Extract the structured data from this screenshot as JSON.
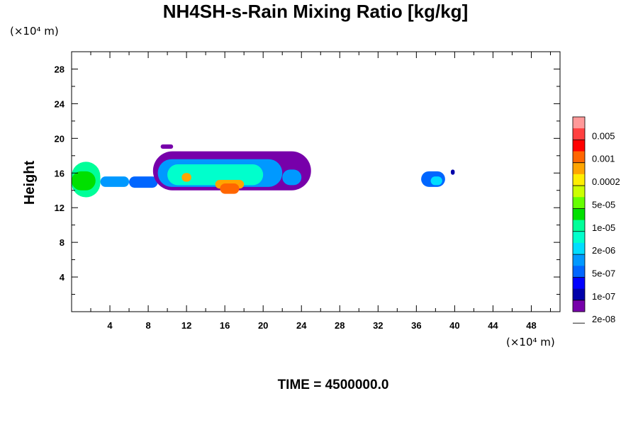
{
  "chart_data": {
    "type": "heatmap",
    "title": "NH4SH-s-Rain Mixing Ratio [kg/kg]",
    "ylabel": "Height",
    "xlabel": "",
    "x_unit": "(×10⁴ m)",
    "y_unit": "(×10⁴ m)",
    "xlim": [
      0,
      51
    ],
    "ylim": [
      0,
      30
    ],
    "x_ticks": [
      4,
      8,
      12,
      16,
      20,
      24,
      28,
      32,
      36,
      40,
      44,
      48
    ],
    "y_ticks": [
      4,
      8,
      12,
      16,
      20,
      24,
      28
    ],
    "colorbar": {
      "labels": [
        "0.005",
        "0.001",
        "0.0002",
        "5e-05",
        "1e-05",
        "2e-06",
        "5e-07",
        "1e-07",
        "2e-08"
      ],
      "colors": [
        "#ff9999",
        "#ff4040",
        "#ff0000",
        "#ff6600",
        "#ffa500",
        "#ffee00",
        "#ccff00",
        "#66ff00",
        "#00e000",
        "#00ff99",
        "#00ffcc",
        "#00ddff",
        "#0099ff",
        "#0066ff",
        "#0000ff",
        "#0000aa",
        "#7700aa"
      ]
    },
    "regions": [
      {
        "x": [
          0,
          3
        ],
        "y": [
          13.2,
          17.3
        ],
        "level": 9
      },
      {
        "x": [
          0,
          2.5
        ],
        "y": [
          14,
          16.2
        ],
        "level": 8
      },
      {
        "x": [
          3,
          6
        ],
        "y": [
          14.4,
          15.6
        ],
        "level": 12
      },
      {
        "x": [
          6,
          9
        ],
        "y": [
          14.3,
          15.6
        ],
        "level": 13
      },
      {
        "x": [
          8.5,
          25
        ],
        "y": [
          14,
          18.5
        ],
        "level": 16
      },
      {
        "x": [
          9,
          22
        ],
        "y": [
          14.4,
          17.6
        ],
        "level": 12
      },
      {
        "x": [
          10,
          20
        ],
        "y": [
          14.6,
          17
        ],
        "level": 10
      },
      {
        "x": [
          11.5,
          12.5
        ],
        "y": [
          15,
          16
        ],
        "level": 4
      },
      {
        "x": [
          15,
          18
        ],
        "y": [
          14.2,
          15.2
        ],
        "level": 4
      },
      {
        "x": [
          15.5,
          17.5
        ],
        "y": [
          13.6,
          14.8
        ],
        "level": 3
      },
      {
        "x": [
          22,
          24
        ],
        "y": [
          14.6,
          16.4
        ],
        "level": 12
      },
      {
        "x": [
          9.3,
          10.6
        ],
        "y": [
          18.8,
          19.3
        ],
        "level": 16
      },
      {
        "x": [
          36.5,
          39
        ],
        "y": [
          14.4,
          16.2
        ],
        "level": 13
      },
      {
        "x": [
          37.5,
          38.7
        ],
        "y": [
          14.6,
          15.6
        ],
        "level": 11
      },
      {
        "x": [
          39.6,
          40
        ],
        "y": [
          15.8,
          16.4
        ],
        "level": 15
      }
    ]
  },
  "footer": {
    "time_label": "TIME = 4500000.0"
  }
}
